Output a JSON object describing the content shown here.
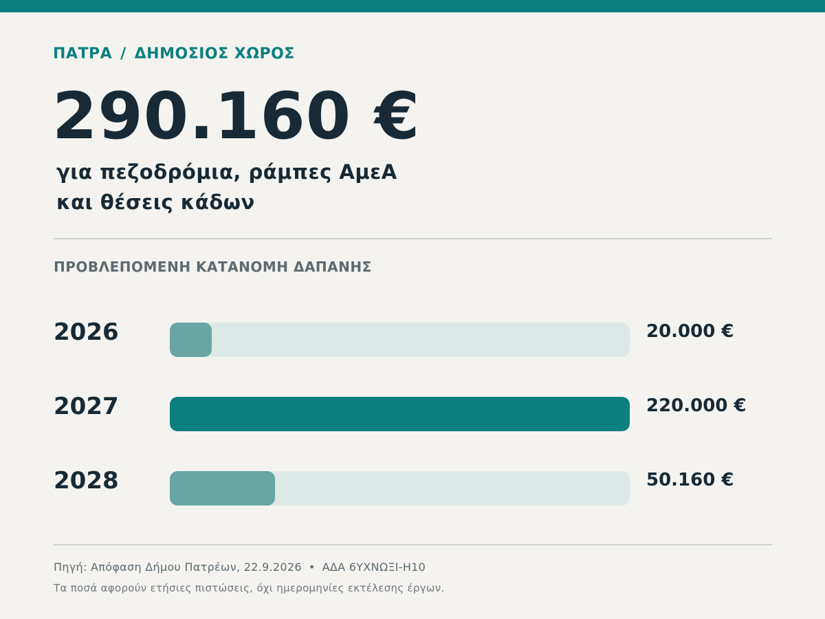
{
  "header": {
    "city": "ΠΑΤΡΑ",
    "separator": "/",
    "category": "ΔΗΜΟΣΙΟΣ ΧΩΡΟΣ",
    "total_amount": "290.160 €",
    "subtitle_line1": "για πεζοδρόμια, ράμπες ΑμεΑ",
    "subtitle_line2": "και θέσεις κάδων"
  },
  "section_label": "ΠΡΟΒΛΕΠΟΜΕΝΗ ΚΑΤΑΝΟΜΗ ΔΑΠΑΝΗΣ",
  "colors": {
    "accent": "#0b7f7f",
    "muted_bar": "#67a6a2",
    "track": "#dde9e6"
  },
  "chart_data": {
    "type": "bar",
    "orientation": "horizontal",
    "categories": [
      "2026",
      "2027",
      "2028"
    ],
    "values": [
      20000,
      220000,
      50160
    ],
    "value_labels": [
      "20.000 €",
      "220.000 €",
      "50.160 €"
    ],
    "highlight_index": 1,
    "xlim": [
      0,
      220000
    ],
    "grid": false
  },
  "footer": {
    "source_text": "Πηγή: Απόφαση Δήμου Πατρέων, 22.9.2026",
    "bullet": "•",
    "ada_text": "ΑΔΑ 6ΥΧΝΩΞΙ-Η10",
    "note": "Τα ποσά αφορούν ετήσιες πιστώσεις, όχι ημερομηνίες εκτέλεσης έργων."
  }
}
